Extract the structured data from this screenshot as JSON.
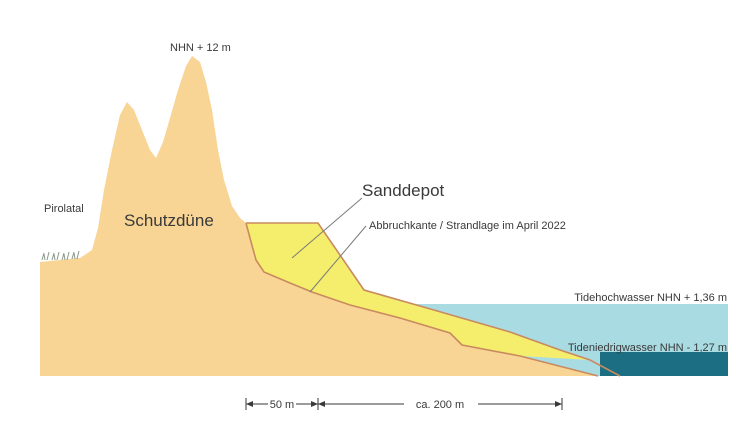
{
  "labels": {
    "peak_elevation": "NHN + 12 m",
    "valley": "Pirolatal",
    "dune": "Schutzdüne",
    "sand_depot": "Sanddepot",
    "erosion_edge": "Abbruchkante / Strandlage im April 2022",
    "high_tide": "Tidehochwasser NHN + 1,36 m",
    "low_tide": "Tideniedrigwasser NHN - 1,27 m"
  },
  "dimensions": {
    "first": "50 m",
    "second": "ca. 200 m"
  },
  "colors": {
    "dune": "#f8d495",
    "sand_depot": "#f5ee6c",
    "high_water": "#a9dbe3",
    "low_water": "#1c6f82",
    "profile_line": "#c98a5f",
    "leader_line": "#7a7a7a",
    "text": "#3a3a3a"
  }
}
